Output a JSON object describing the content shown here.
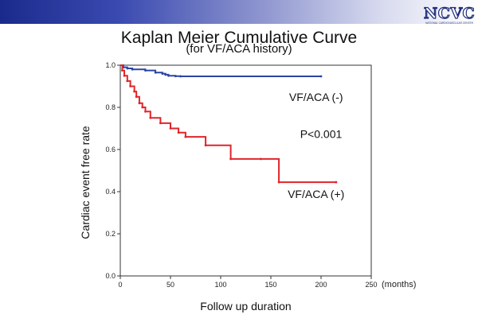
{
  "header": {
    "logo_text": "NCVC",
    "logo_subtext": "NATIONAL CARDIOVASCULAR CENTER",
    "band_color": "#1a2a8c"
  },
  "chart_data": {
    "type": "line",
    "step": true,
    "title": "Kaplan Meier Cumulative Curve",
    "subtitle": "(for VF/ACA history)",
    "xlabel": "Follow up duration",
    "xunit": "(months)",
    "ylabel": "Cardiac event free rate",
    "xlim": [
      0,
      250
    ],
    "ylim": [
      0,
      1.0
    ],
    "x_ticks": [
      "0",
      "50",
      "100",
      "150",
      "200",
      "250"
    ],
    "y_ticks": [
      "0.0",
      "0.2",
      "0.4",
      "0.6",
      "0.8",
      "1.0"
    ],
    "grid": false,
    "series": [
      {
        "name": "VF/ACA (-)",
        "color": "#2b44a6",
        "points": [
          [
            0,
            1.0
          ],
          [
            3,
            0.99
          ],
          [
            7,
            0.985
          ],
          [
            12,
            0.98
          ],
          [
            25,
            0.975
          ],
          [
            35,
            0.965
          ],
          [
            42,
            0.96
          ],
          [
            45,
            0.955
          ],
          [
            48,
            0.95
          ],
          [
            55,
            0.948
          ],
          [
            60,
            0.947
          ],
          [
            200,
            0.947
          ]
        ]
      },
      {
        "name": "VF/ACA (+)",
        "color": "#e0252b",
        "points": [
          [
            0,
            1.0
          ],
          [
            2,
            0.975
          ],
          [
            4,
            0.95
          ],
          [
            7,
            0.925
          ],
          [
            10,
            0.9
          ],
          [
            14,
            0.875
          ],
          [
            16,
            0.85
          ],
          [
            19,
            0.82
          ],
          [
            22,
            0.8
          ],
          [
            25,
            0.78
          ],
          [
            30,
            0.75
          ],
          [
            40,
            0.725
          ],
          [
            50,
            0.7
          ],
          [
            58,
            0.68
          ],
          [
            65,
            0.66
          ],
          [
            85,
            0.62
          ],
          [
            110,
            0.555
          ],
          [
            140,
            0.555
          ],
          [
            158,
            0.445
          ],
          [
            215,
            0.445
          ]
        ]
      }
    ],
    "annotations": [
      {
        "text": "VF/ACA (-)",
        "x": 195,
        "y": 0.83
      },
      {
        "text": "P<0.001",
        "x": 200,
        "y": 0.655
      },
      {
        "text": "VF/ACA (+)",
        "x": 195,
        "y": 0.37
      }
    ]
  }
}
